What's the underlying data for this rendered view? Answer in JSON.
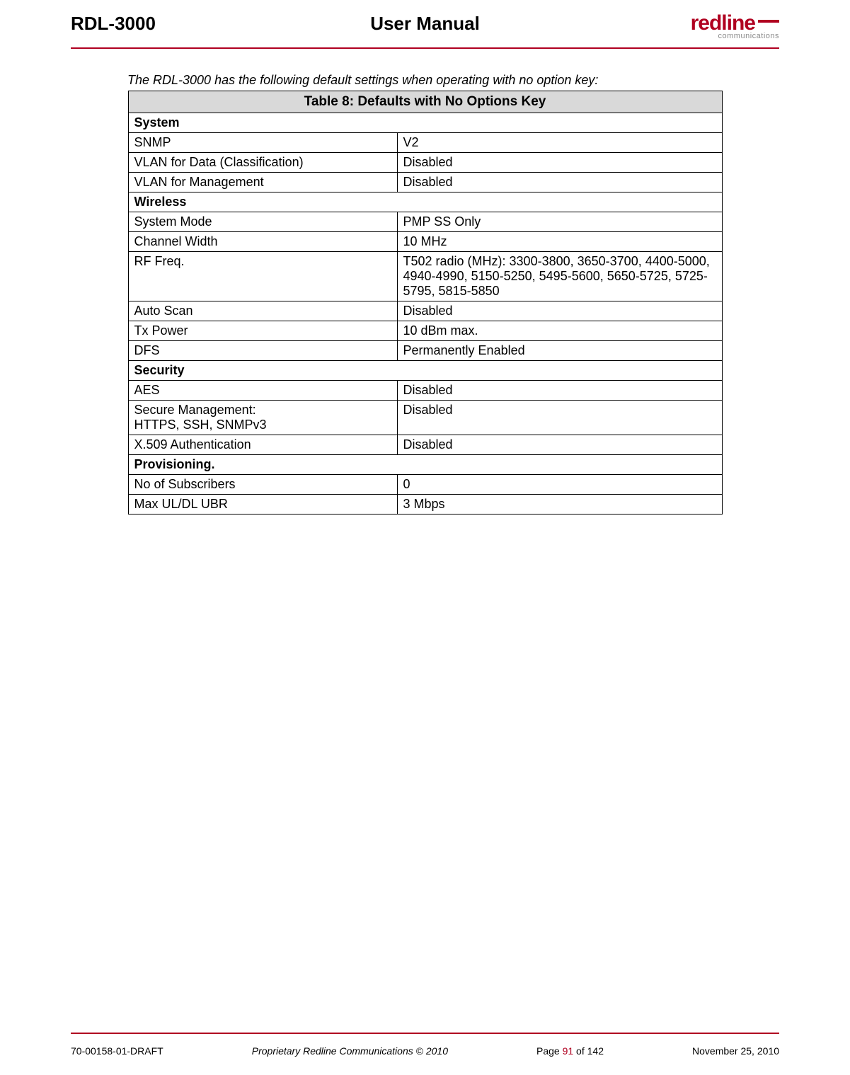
{
  "header": {
    "left": "RDL-3000",
    "center": "User Manual",
    "logo_main": "redline",
    "logo_sub": "communications"
  },
  "intro": "The RDL-3000 has the following default settings when operating with no option key:",
  "table": {
    "title_prefix": "Table 8",
    "title_rest": ": Defaults with No Options Key",
    "rows": [
      {
        "type": "section",
        "label": "System"
      },
      {
        "type": "row",
        "k": "SNMP",
        "v": "V2"
      },
      {
        "type": "row",
        "k": "VLAN for Data (Classification)",
        "v": "Disabled"
      },
      {
        "type": "row",
        "k": "VLAN for Management",
        "v": "Disabled"
      },
      {
        "type": "section",
        "label": "Wireless"
      },
      {
        "type": "row",
        "k": "System Mode",
        "v": "PMP SS Only"
      },
      {
        "type": "row",
        "k": "Channel Width",
        "v": "10 MHz"
      },
      {
        "type": "row",
        "k": "RF Freq.",
        "v": "T502 radio (MHz): 3300-3800, 3650-3700, 4400-5000, 4940-4990, 5150-5250, 5495-5600, 5650-5725, 5725-5795, 5815-5850"
      },
      {
        "type": "row",
        "k": "Auto Scan",
        "v": "Disabled"
      },
      {
        "type": "row",
        "k": "Tx Power",
        "v": "10 dBm max."
      },
      {
        "type": "row",
        "k": "DFS",
        "v": "Permanently Enabled"
      },
      {
        "type": "section",
        "label": "Security"
      },
      {
        "type": "row",
        "k": "AES",
        "v": "Disabled"
      },
      {
        "type": "row",
        "k": "Secure Management:\nHTTPS, SSH, SNMPv3",
        "v": "Disabled"
      },
      {
        "type": "row",
        "k": "X.509 Authentication",
        "v": "Disabled"
      },
      {
        "type": "section",
        "label": "Provisioning."
      },
      {
        "type": "row",
        "k": "No of Subscribers",
        "v": "0"
      },
      {
        "type": "row",
        "k": "Max UL/DL UBR",
        "v": "3 Mbps"
      }
    ]
  },
  "footer": {
    "doc_id": "70-00158-01-DRAFT",
    "copyright": "Proprietary Redline Communications © 2010",
    "page_label_pre": "Page ",
    "page_current": "91",
    "page_label_mid": " of ",
    "page_total": "142",
    "date": "November 25, 2010"
  },
  "colors": {
    "brand": "#b00020",
    "section_bg": "#d9d9d9"
  }
}
